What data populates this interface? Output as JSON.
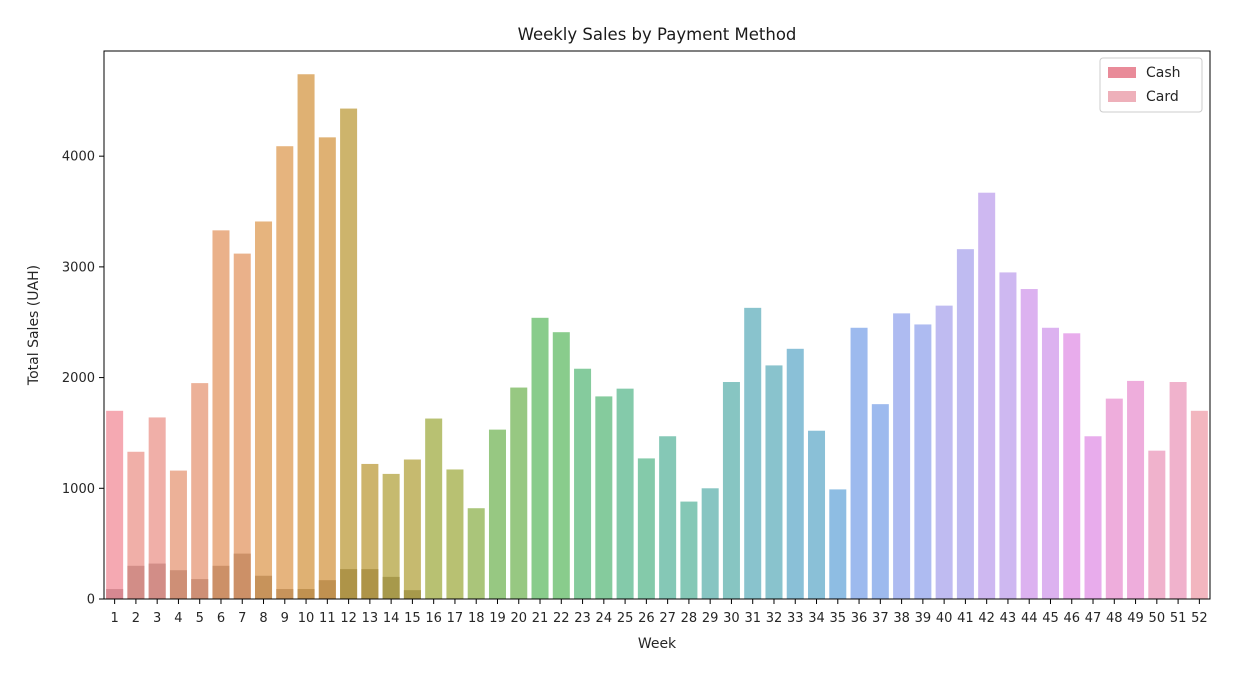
{
  "chart_data": {
    "type": "bar",
    "title": "Weekly Sales by Payment Method",
    "xlabel": "Week",
    "ylabel": "Total Sales (UAH)",
    "ylim": [
      0,
      4950
    ],
    "yticks": [
      0,
      1000,
      2000,
      3000,
      4000
    ],
    "categories": [
      "1",
      "2",
      "3",
      "4",
      "5",
      "6",
      "7",
      "8",
      "9",
      "10",
      "11",
      "12",
      "13",
      "14",
      "15",
      "16",
      "17",
      "18",
      "19",
      "20",
      "21",
      "22",
      "23",
      "24",
      "25",
      "26",
      "27",
      "28",
      "29",
      "30",
      "31",
      "32",
      "33",
      "34",
      "35",
      "36",
      "37",
      "38",
      "39",
      "40",
      "41",
      "42",
      "43",
      "44",
      "45",
      "46",
      "47",
      "48",
      "49",
      "50",
      "51",
      "52"
    ],
    "series": [
      {
        "name": "Cash",
        "values": [
          90,
          300,
          320,
          260,
          180,
          300,
          410,
          210,
          90,
          90,
          170,
          270,
          270,
          200,
          80,
          0,
          0,
          0,
          0,
          0,
          0,
          0,
          0,
          0,
          0,
          0,
          0,
          0,
          0,
          0,
          0,
          0,
          0,
          0,
          0,
          0,
          0,
          0,
          0,
          0,
          0,
          0,
          0,
          0,
          0,
          0,
          0,
          0,
          0,
          0,
          0,
          0
        ]
      },
      {
        "name": "Card",
        "values": [
          1700,
          1330,
          1640,
          1160,
          1950,
          3330,
          3120,
          3410,
          4090,
          4740,
          4170,
          4430,
          1220,
          1130,
          1260,
          1630,
          1170,
          820,
          1530,
          1910,
          2540,
          2410,
          2080,
          1830,
          1900,
          1270,
          1470,
          880,
          1000,
          1960,
          2630,
          2110,
          2260,
          1520,
          990,
          2450,
          1760,
          2580,
          2480,
          2650,
          3160,
          3670,
          2950,
          2800,
          2450,
          2400,
          1470,
          1810,
          1970,
          1340,
          1960,
          1700
        ]
      }
    ],
    "legend": {
      "placement": "top-right",
      "entries": [
        "Cash",
        "Card"
      ]
    },
    "grid": false
  },
  "colors": {
    "cash_legend": "#e98b99",
    "card_legend": "#eeb0ba",
    "bar_palette": [
      "#f4a0aa",
      "#eea69f",
      "#eaa88d",
      "#e8a97d",
      "#e3ac70",
      "#dba964",
      "#c8ac5c",
      "#c0b25f",
      "#b0ba63",
      "#a1bf6b",
      "#8cc274",
      "#7cc67f",
      "#78c592",
      "#77c4a1",
      "#78c2ae",
      "#7abfbb",
      "#7cbcc8",
      "#7db9d3",
      "#82b6e0",
      "#92b2ec",
      "#a5b4f0",
      "#b8b4f0",
      "#c9b0ef",
      "#d8aaee",
      "#e6a3ea",
      "#eca4d8",
      "#eeaac7",
      "#f1aeb8"
    ]
  }
}
